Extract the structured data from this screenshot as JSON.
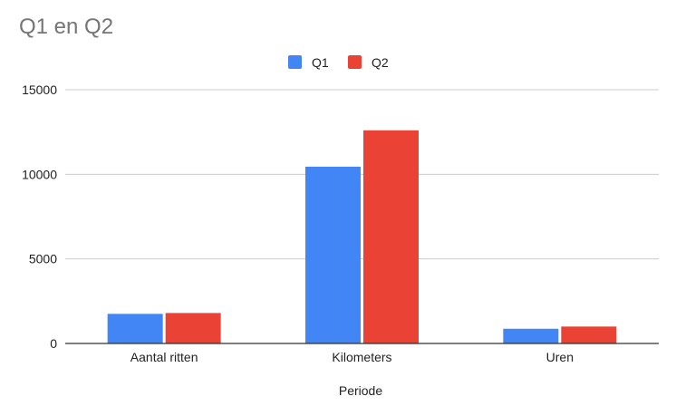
{
  "chart_data": {
    "type": "bar",
    "title": "Q1 en Q2",
    "xlabel": "Periode",
    "ylabel": "",
    "categories": [
      "Aantal ritten",
      "Kilometers",
      "Uren"
    ],
    "series": [
      {
        "name": "Q1",
        "values": [
          1750,
          10450,
          870
        ],
        "color": "#4285F4"
      },
      {
        "name": "Q2",
        "values": [
          1800,
          12600,
          1000
        ],
        "color": "#EA4335"
      }
    ],
    "ylim": [
      0,
      15000
    ],
    "yticks": [
      0,
      5000,
      10000,
      15000
    ],
    "ytick_labels": [
      "0",
      "5000",
      "10000",
      "15000"
    ],
    "grid": true,
    "legend_position": "top-center"
  }
}
